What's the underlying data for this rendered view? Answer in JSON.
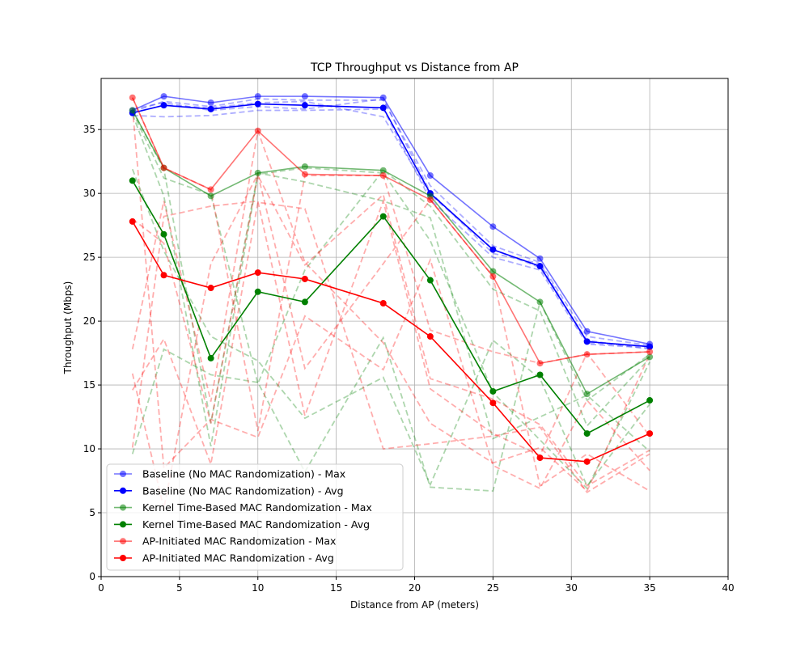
{
  "chart_data": {
    "type": "line",
    "title": "TCP Throughput vs Distance from AP",
    "xlabel": "Distance from AP (meters)",
    "ylabel": "Throughput (Mbps)",
    "xlim": [
      0,
      40
    ],
    "ylim": [
      0,
      39
    ],
    "xticks": [
      0,
      5,
      10,
      15,
      20,
      25,
      30,
      35,
      40
    ],
    "yticks": [
      0,
      5,
      10,
      15,
      20,
      25,
      30,
      35
    ],
    "grid": true,
    "legend_position": "lower-left",
    "x": [
      2,
      4,
      7,
      10,
      13,
      18,
      21,
      25,
      28,
      31,
      35
    ],
    "series": [
      {
        "name": "Baseline (No MAC Randomization) - Max",
        "color": "#0000ff",
        "style": "solid",
        "opacity": 0.55,
        "values": [
          36.5,
          37.6,
          37.1,
          37.6,
          37.6,
          37.5,
          31.4,
          27.4,
          24.9,
          19.2,
          18.2
        ]
      },
      {
        "name": "Baseline (No MAC Randomization) - Avg",
        "color": "#0000ff",
        "style": "solid",
        "opacity": 1.0,
        "values": [
          36.3,
          36.9,
          36.6,
          37.0,
          36.9,
          36.7,
          30.0,
          25.6,
          24.3,
          18.4,
          18.0
        ]
      },
      {
        "name": "Kernel Time-Based MAC Randomization - Max",
        "color": "#008000",
        "style": "solid",
        "opacity": 0.55,
        "values": [
          36.5,
          32.0,
          29.8,
          31.6,
          32.1,
          31.8,
          29.8,
          23.9,
          21.5,
          14.3,
          17.2
        ]
      },
      {
        "name": "Kernel Time-Based MAC Randomization - Avg",
        "color": "#008000",
        "style": "solid",
        "opacity": 1.0,
        "values": [
          31.0,
          26.8,
          17.1,
          22.3,
          21.5,
          28.2,
          23.2,
          14.5,
          15.8,
          11.2,
          13.8
        ]
      },
      {
        "name": "AP-Initiated MAC Randomization - Max",
        "color": "#ff0000",
        "style": "solid",
        "opacity": 0.55,
        "values": [
          37.5,
          32.0,
          30.3,
          34.9,
          31.5,
          31.4,
          29.5,
          23.5,
          16.7,
          17.4,
          17.6
        ]
      },
      {
        "name": "AP-Initiated MAC Randomization - Avg",
        "color": "#ff0000",
        "style": "solid",
        "opacity": 1.0,
        "values": [
          27.8,
          23.6,
          22.6,
          23.8,
          23.3,
          21.4,
          18.8,
          13.6,
          9.3,
          9.0,
          11.2
        ]
      }
    ],
    "trial_series": [
      {
        "color": "#0000ff",
        "values": [
          36.4,
          37.2,
          36.8,
          37.4,
          37.3,
          37.3,
          30.6,
          25.9,
          24.6,
          18.8,
          18.1
        ]
      },
      {
        "color": "#0000ff",
        "values": [
          36.1,
          36.0,
          36.1,
          36.5,
          36.5,
          36.6,
          29.5,
          25.0,
          24.0,
          18.2,
          17.9
        ]
      },
      {
        "color": "#0000ff",
        "values": [
          36.3,
          36.9,
          36.7,
          37.1,
          37.2,
          36.0,
          29.9,
          25.6,
          24.2,
          18.5,
          17.8
        ]
      },
      {
        "color": "#0000ff",
        "values": [
          36.6,
          37.1,
          36.5,
          36.8,
          36.6,
          37.4,
          30.1,
          25.3,
          24.5,
          18.3,
          18.0
        ]
      },
      {
        "color": "#008000",
        "values": [
          9.6,
          17.8,
          15.8,
          15.2,
          8.2,
          18.7,
          7.0,
          6.7,
          21.5,
          13.8,
          17.4
        ]
      },
      {
        "color": "#008000",
        "values": [
          36.2,
          29.8,
          10.2,
          31.5,
          32.0,
          31.6,
          26.3,
          14.4,
          10.7,
          6.9,
          16.8
        ]
      },
      {
        "color": "#008000",
        "values": [
          36.5,
          31.9,
          12.0,
          31.6,
          30.9,
          29.4,
          28.1,
          10.8,
          12.5,
          14.2,
          9.8
        ]
      },
      {
        "color": "#008000",
        "values": [
          31.9,
          25.5,
          18.8,
          16.9,
          12.4,
          15.6,
          7.2,
          18.5,
          15.5,
          7.1,
          13.5
        ]
      },
      {
        "color": "#008000",
        "values": [
          36.4,
          31.2,
          29.9,
          15.1,
          24.0,
          31.8,
          29.0,
          22.5,
          20.8,
          11.8,
          17.1
        ]
      },
      {
        "color": "#ff0000",
        "values": [
          17.8,
          29.4,
          13.7,
          34.9,
          24.6,
          18.3,
          12.0,
          8.9,
          10.1,
          6.7,
          17.4
        ]
      },
      {
        "color": "#ff0000",
        "values": [
          14.6,
          18.6,
          8.8,
          29.3,
          28.8,
          10.0,
          10.4,
          11.0,
          11.7,
          6.6,
          9.6
        ]
      },
      {
        "color": "#ff0000",
        "values": [
          15.9,
          5.3,
          24.5,
          31.5,
          16.3,
          24.5,
          29.5,
          23.5,
          7.1,
          9.6,
          6.7
        ]
      },
      {
        "color": "#ff0000",
        "values": [
          37.5,
          32.0,
          30.3,
          11.4,
          31.4,
          31.4,
          19.3,
          17.6,
          16.7,
          17.4,
          17.6
        ]
      },
      {
        "color": "#ff0000",
        "values": [
          36.7,
          8.5,
          12.3,
          10.9,
          20.4,
          16.2,
          24.8,
          8.7,
          6.9,
          13.8,
          8.3
        ]
      },
      {
        "color": "#ff0000",
        "values": [
          10.1,
          28.2,
          29.0,
          29.4,
          12.6,
          29.4,
          14.7,
          11.2,
          9.5,
          17.5,
          11.0
        ]
      },
      {
        "color": "#ff0000",
        "values": [
          28.0,
          26.1,
          12.0,
          31.4,
          24.4,
          29.9,
          15.5,
          13.9,
          11.9,
          7.1,
          9.9
        ]
      }
    ]
  }
}
